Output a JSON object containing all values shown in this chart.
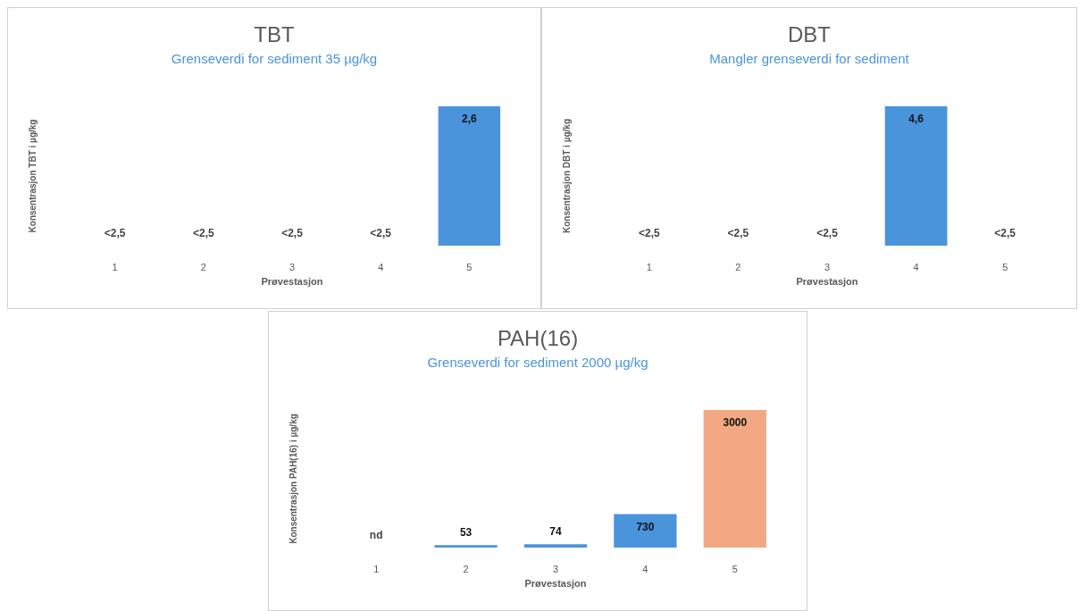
{
  "chart_data": [
    {
      "type": "bar",
      "title": "TBT",
      "subtitle": "Grenseverdi for sediment 35 µg/kg",
      "xlabel": "Prøvestasjon",
      "ylabel": "Konsentrasjon TBT i µg/kg",
      "categories": [
        "1",
        "2",
        "3",
        "4",
        "5"
      ],
      "values": [
        null,
        null,
        null,
        null,
        2.6
      ],
      "colors": [
        "#4a94dc",
        "#4a94dc",
        "#4a94dc",
        "#4a94dc",
        "#4a94dc"
      ],
      "value_labels": [
        "<2,5",
        "<2,5",
        "<2,5",
        "<2,5",
        "2,6"
      ]
    },
    {
      "type": "bar",
      "title": "DBT",
      "subtitle": "Mangler grenseverdi for sediment",
      "xlabel": "Prøvestasjon",
      "ylabel": "Konsentrasjon DBT i µg/kg",
      "categories": [
        "1",
        "2",
        "3",
        "4",
        "5"
      ],
      "values": [
        null,
        null,
        null,
        4.6,
        null
      ],
      "colors": [
        "#4a94dc",
        "#4a94dc",
        "#4a94dc",
        "#4a94dc",
        "#4a94dc"
      ],
      "value_labels": [
        "<2,5",
        "<2,5",
        "<2,5",
        "4,6",
        "<2,5"
      ]
    },
    {
      "type": "bar",
      "title": "PAH(16)",
      "subtitle": "Grenseverdi for sediment 2000 µg/kg",
      "xlabel": "Prøvestasjon",
      "ylabel": "Konsentrasjon PAH(16) i µg/kg",
      "categories": [
        "1",
        "2",
        "3",
        "4",
        "5"
      ],
      "values": [
        null,
        53,
        74,
        730,
        3000
      ],
      "colors": [
        "#4a94dc",
        "#4a94dc",
        "#4a94dc",
        "#4a94dc",
        "#f2a983"
      ],
      "value_labels": [
        "nd",
        "53",
        "74",
        "730",
        "3000"
      ]
    }
  ]
}
